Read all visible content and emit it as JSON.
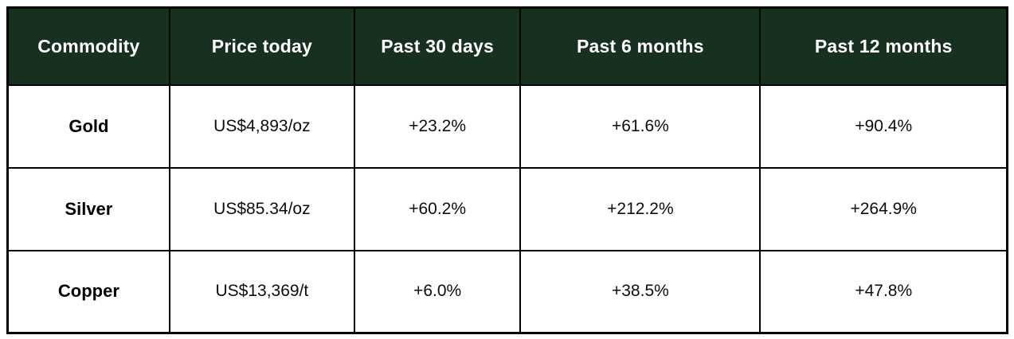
{
  "chart_data": {
    "type": "table",
    "title": "",
    "columns": [
      "Commodity",
      "Price today",
      "Past 30 days",
      "Past 6 months",
      "Past 12 months"
    ],
    "rows": [
      [
        "Gold",
        "US$4,893/oz",
        "+23.2%",
        "+61.6%",
        "+90.4%"
      ],
      [
        "Silver",
        "US$85.34/oz",
        "+60.2%",
        "+212.2%",
        "+264.9%"
      ],
      [
        "Copper",
        "US$13,369/t",
        "+6.0%",
        "+38.5%",
        "+47.8%"
      ]
    ],
    "layout_hints": {
      "header_row": true,
      "grid": true,
      "cell_alignment": "center"
    }
  },
  "colors": {
    "header_bg": "#17301f",
    "header_text": "#ffffff",
    "border": "#000000",
    "row_bg": "#ffffff",
    "body_text": "#0d0d0d"
  }
}
